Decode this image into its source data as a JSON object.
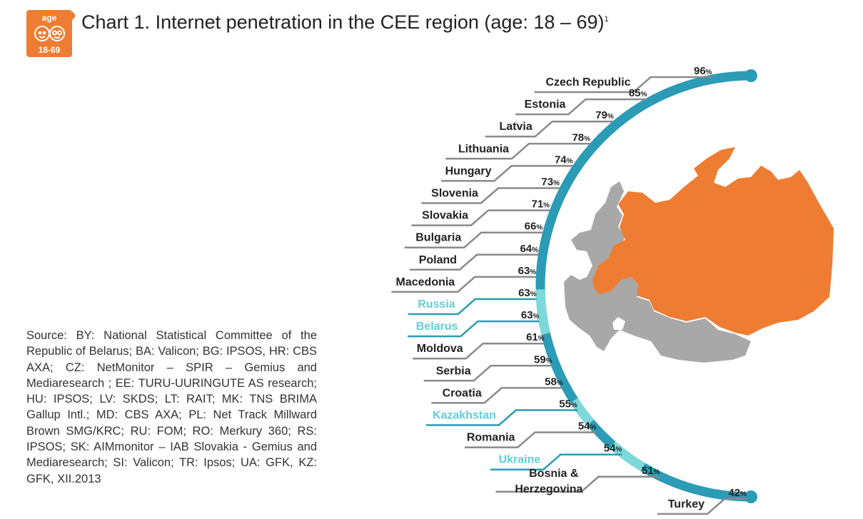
{
  "header": {
    "badge_top": "age",
    "badge_bottom": "18-69",
    "title_prefix": "Chart 1.",
    "title_main": "Internet penetration in the CEE region (age: 18 – 69)",
    "title_footnote": "1"
  },
  "source_text": "Source: BY: National Statistical Committee of the Republic of Belarus; BA: Valicon; BG: IPSOS, HR: CBS AXA; CZ: NetMonitor – SPIR – Gemius and Mediaresearch ; EE: TURU-UURINGUTE AS research; HU: IPSOS; LV: SKDS; LT: RAIT; MK: TNS BRIMA Gallup Intl.; MD: CBS AXA; PL: Net Track Millward Brown SMG/KRC; RU: FOM; RO: Merkury 360; RS: IPSOS; SK: AIMmonitor – IAB Slovakia - Gemius and Mediaresearch; SI: Valicon; TR: Ipsos; UA: GFK, KZ: GFK, XII.2013",
  "colors": {
    "badge": "#ee7d33",
    "arc": "#2b9bb6",
    "arc_highlight": "#7dd9d9",
    "highlight_label": "#5fd0d8",
    "leader": "#8a8a8a",
    "map_russia": "#ee7d33",
    "map_region": "#a8a8a8"
  },
  "map": {
    "highlight_icon": "map-icon"
  },
  "chart_data": {
    "type": "bar",
    "title": "Internet penetration in the CEE region (age: 18 – 69)",
    "value_unit": "%",
    "categories": [
      "Czech Republic",
      "Estonia",
      "Latvia",
      "Lithuania",
      "Hungary",
      "Slovenia",
      "Slovakia",
      "Bulgaria",
      "Poland",
      "Macedonia",
      "Russia",
      "Belarus",
      "Moldova",
      "Serbia",
      "Croatia",
      "Kazakhstan",
      "Romania",
      "Ukraine",
      "Bosnia & Herzegovina",
      "Turkey"
    ],
    "label_lines": [
      [
        "Czech Republic"
      ],
      [
        "Estonia"
      ],
      [
        "Latvia"
      ],
      [
        "Lithuania"
      ],
      [
        "Hungary"
      ],
      [
        "Slovenia"
      ],
      [
        "Slovakia"
      ],
      [
        "Bulgaria"
      ],
      [
        "Poland"
      ],
      [
        "Macedonia"
      ],
      [
        "Russia"
      ],
      [
        "Belarus"
      ],
      [
        "Moldova"
      ],
      [
        "Serbia"
      ],
      [
        "Croatia"
      ],
      [
        "Kazakhstan"
      ],
      [
        "Romania"
      ],
      [
        "Ukraine"
      ],
      [
        "Bosnia &",
        "Herzegovina"
      ],
      [
        "Turkey"
      ]
    ],
    "values": [
      96,
      85,
      79,
      78,
      74,
      73,
      71,
      66,
      64,
      63,
      63,
      63,
      61,
      59,
      58,
      55,
      54,
      54,
      51,
      42
    ],
    "highlighted": [
      "Russia",
      "Belarus",
      "Kazakhstan",
      "Ukraine"
    ]
  }
}
